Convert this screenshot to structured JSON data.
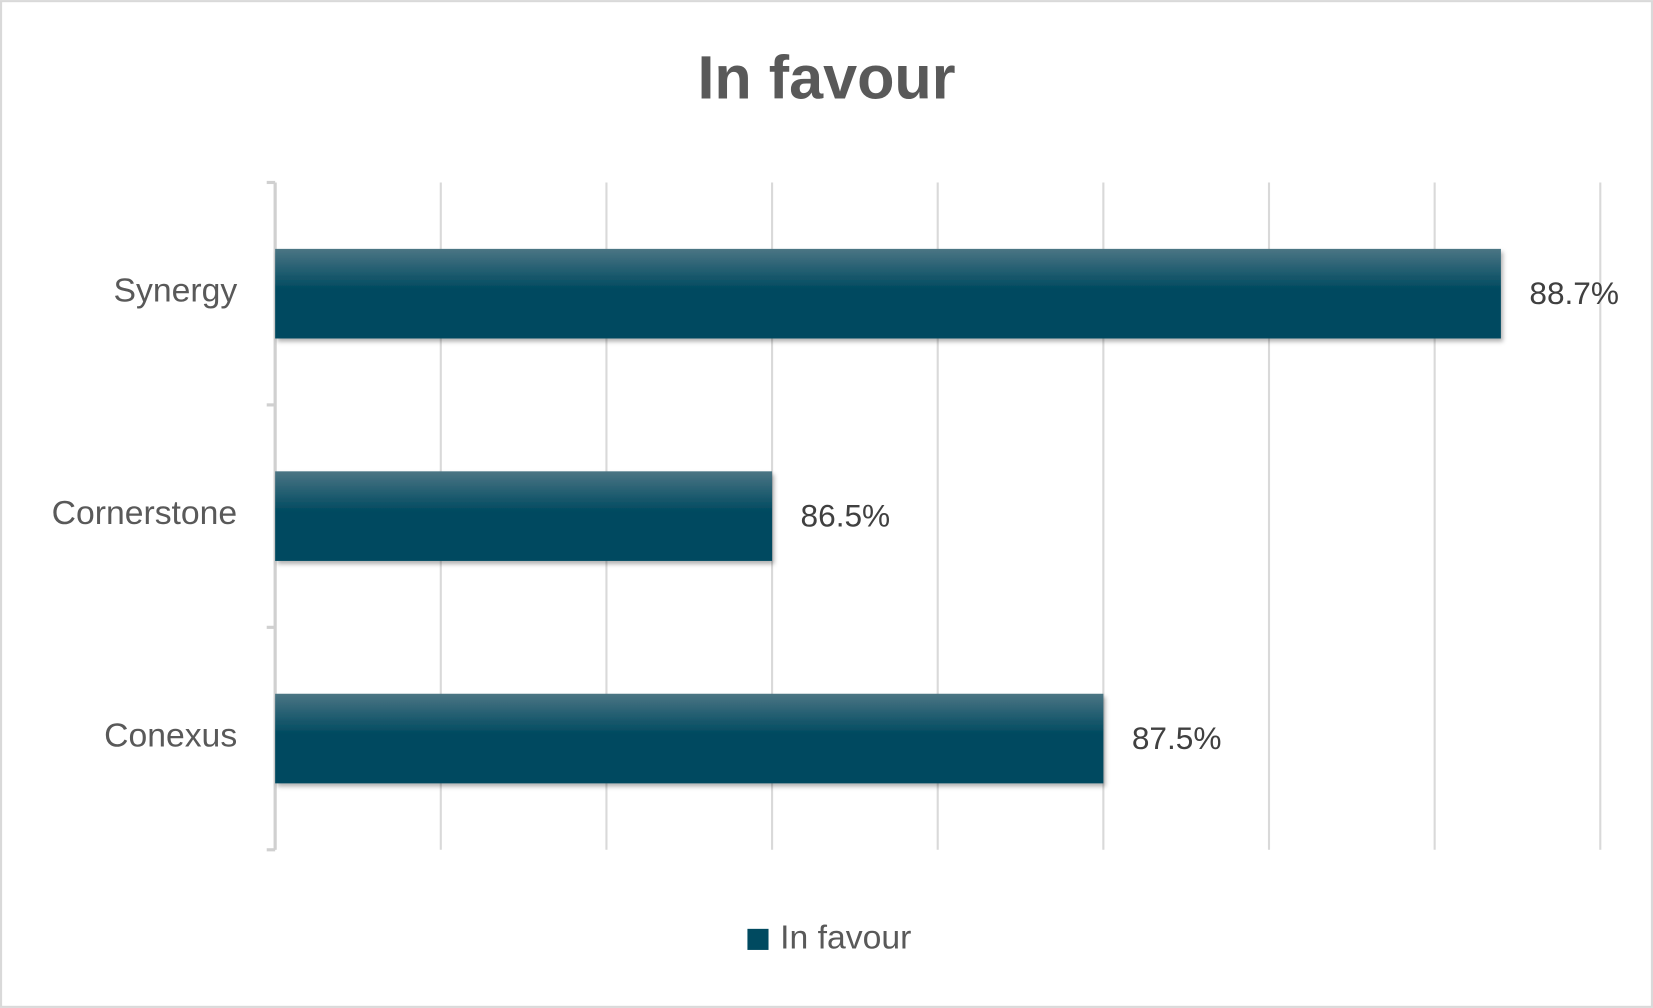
{
  "chart_data": {
    "type": "hbar",
    "title": "In favour",
    "categories": [
      "Synergy",
      "Cornerstone",
      "Conexus"
    ],
    "series": [
      {
        "name": "In favour",
        "color": "#004a60",
        "values": [
          88.7,
          86.5,
          87.5
        ],
        "value_labels": [
          "88.7%",
          "86.5%",
          "87.5%"
        ]
      }
    ],
    "xlim": [
      85,
      89
    ],
    "xticks": [
      85,
      85.5,
      86,
      86.5,
      87,
      87.5,
      88,
      88.5,
      89
    ],
    "grid": true,
    "legend": "bottom"
  }
}
